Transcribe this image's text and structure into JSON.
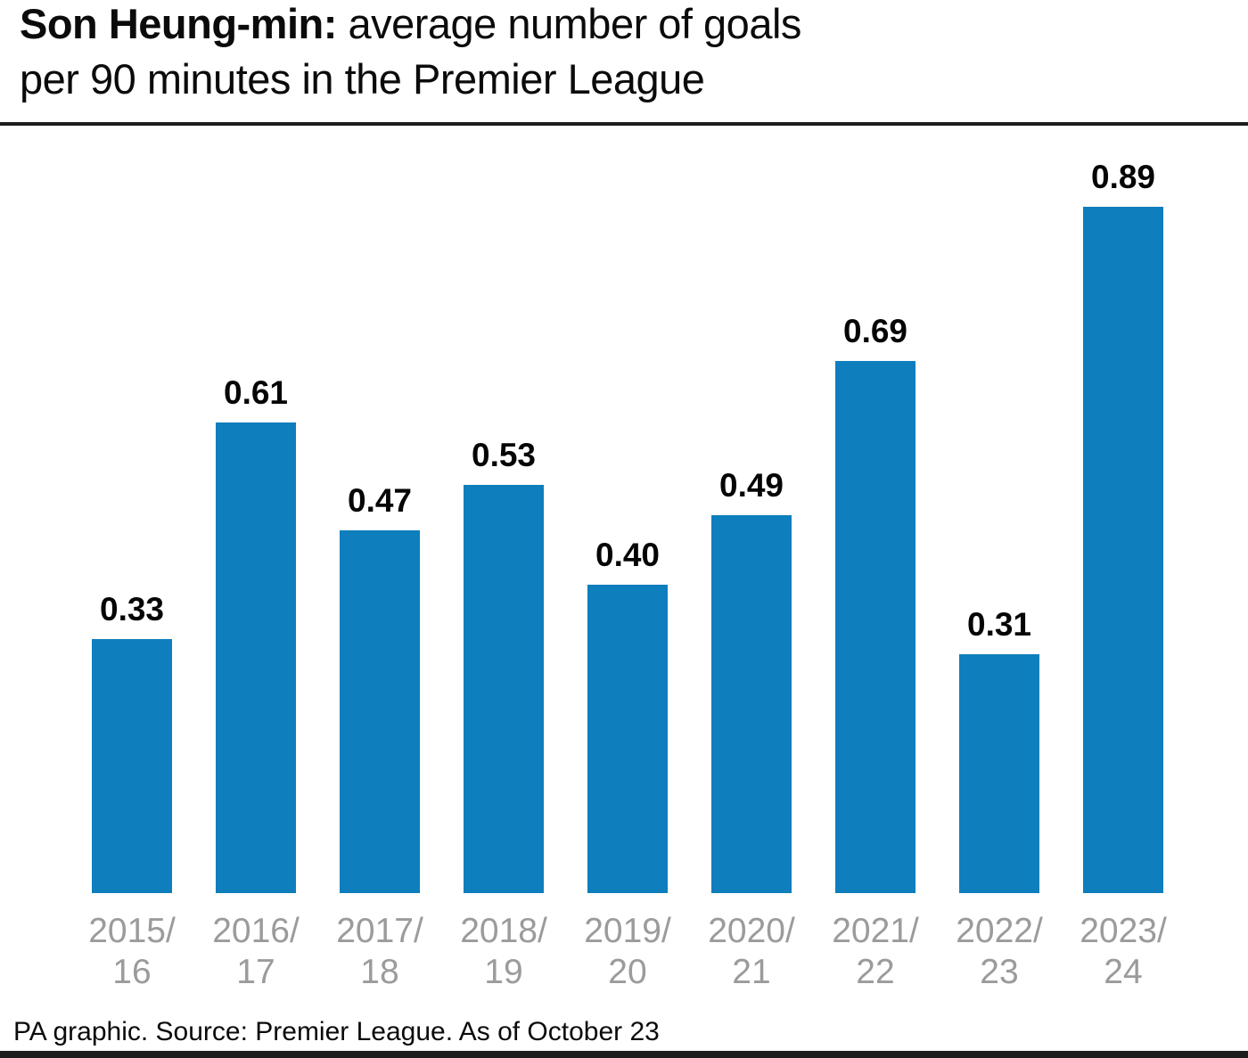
{
  "title": {
    "line1_bold": "Son Heung-min:",
    "line1_rest": " average number of goals",
    "line2": "per 90 minutes in the Premier League"
  },
  "footer": {
    "text": "PA graphic. Source: Premier League. As of October 23"
  },
  "colors": {
    "bar": "#0E7EBD",
    "axis_label": "#9B9B9B",
    "rule": "#1D1D1D",
    "text": "#000000",
    "background": "#FFFFFF"
  },
  "chart_data": {
    "type": "bar",
    "title": "Son Heung-min: average number of goals per 90 minutes in the Premier League",
    "categories": [
      "2015/16",
      "2016/17",
      "2017/18",
      "2018/19",
      "2019/20",
      "2020/21",
      "2021/22",
      "2022/23",
      "2023/24"
    ],
    "category_lines": [
      [
        "2015/",
        "16"
      ],
      [
        "2016/",
        "17"
      ],
      [
        "2017/",
        "18"
      ],
      [
        "2018/",
        "19"
      ],
      [
        "2019/",
        "20"
      ],
      [
        "2020/",
        "21"
      ],
      [
        "2021/",
        "22"
      ],
      [
        "2022/",
        "23"
      ],
      [
        "2023/",
        "24"
      ]
    ],
    "values": [
      0.33,
      0.61,
      0.47,
      0.53,
      0.4,
      0.49,
      0.69,
      0.31,
      0.89
    ],
    "value_labels": [
      "0.33",
      "0.61",
      "0.47",
      "0.53",
      "0.40",
      "0.49",
      "0.69",
      "0.31",
      "0.89"
    ],
    "xlabel": "",
    "ylabel": "",
    "ylim": [
      0,
      1.0
    ],
    "grid": false,
    "legend_position": "none",
    "bar_color": "#0E7EBD",
    "value_labels_position": "above-bars",
    "source": "PA graphic. Source: Premier League. As of October 23"
  }
}
